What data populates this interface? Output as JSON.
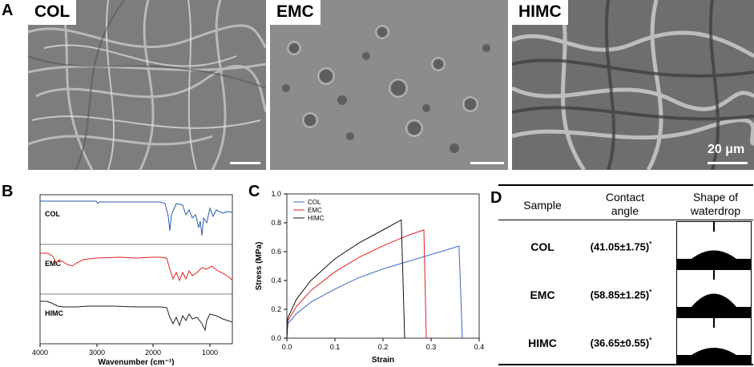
{
  "panels": {
    "a": {
      "letter": "A",
      "images": [
        {
          "label": "COL",
          "description_icon": "sem-fibrous-collagen"
        },
        {
          "label": "EMC",
          "description_icon": "sem-porous-matrix"
        },
        {
          "label": "HIMC",
          "description_icon": "sem-dense-fibers"
        }
      ],
      "scale_text": "20 μm"
    },
    "b": {
      "letter": "B",
      "traces": [
        {
          "name": "COL",
          "color": "#2a5aa8"
        },
        {
          "name": "EMC",
          "color": "#e02020"
        },
        {
          "name": "HIMC",
          "color": "#222222"
        }
      ],
      "x_ticks": [
        "4000",
        "3000",
        "2000",
        "1000"
      ],
      "xlabel": "Wavenumber (cm⁻¹)"
    },
    "c": {
      "letter": "C",
      "xlabel": "Strain",
      "ylabel": "Stress (MPa)"
    },
    "d": {
      "letter": "D",
      "headers": {
        "sample": "Sample",
        "angle": "Contact angle",
        "shape": "Shape of waterdrop"
      },
      "rows": [
        {
          "sample": "COL",
          "angle": "(41.05±1.75)",
          "mark": "*",
          "drop_height": 0.35
        },
        {
          "sample": "EMC",
          "angle": "(58.85±1.25)",
          "mark": "*",
          "drop_height": 0.55
        },
        {
          "sample": "HIMC",
          "angle": "(36.65±0.55)",
          "mark": "*",
          "drop_height": 0.3
        }
      ]
    }
  },
  "chart_data": [
    {
      "type": "line",
      "title": "",
      "xlabel": "Wavenumber (cm⁻¹)",
      "ylabel": "",
      "xlim": [
        4000,
        600
      ],
      "x_ticks": [
        4000,
        3000,
        2000,
        1000
      ],
      "series": [
        {
          "name": "COL",
          "color": "#2a5aa8"
        },
        {
          "name": "EMC",
          "color": "#e02020"
        },
        {
          "name": "HIMC",
          "color": "#222222"
        }
      ]
    },
    {
      "type": "line",
      "title": "",
      "xlabel": "Strain",
      "ylabel": "Stress (MPa)",
      "xlim": [
        0,
        0.4
      ],
      "ylim": [
        0,
        1.0
      ],
      "x_ticks": [
        0.0,
        0.1,
        0.2,
        0.3,
        0.4
      ],
      "y_ticks": [
        0.0,
        0.2,
        0.4,
        0.6,
        0.8,
        1.0
      ],
      "legend_position": "top-left",
      "series": [
        {
          "name": "COL",
          "color": "#3b66c4",
          "x": [
            0,
            0.002,
            0.02,
            0.05,
            0.1,
            0.15,
            0.2,
            0.25,
            0.3,
            0.35,
            0.358,
            0.365
          ],
          "y": [
            0,
            0.1,
            0.17,
            0.25,
            0.34,
            0.42,
            0.48,
            0.53,
            0.58,
            0.63,
            0.64,
            0.0
          ]
        },
        {
          "name": "EMC",
          "color": "#e02020",
          "x": [
            0,
            0.002,
            0.02,
            0.05,
            0.1,
            0.15,
            0.2,
            0.25,
            0.285,
            0.29
          ],
          "y": [
            0,
            0.12,
            0.22,
            0.33,
            0.46,
            0.56,
            0.64,
            0.71,
            0.75,
            0.0
          ]
        },
        {
          "name": "HIMC",
          "color": "#111111",
          "x": [
            0,
            0.002,
            0.02,
            0.05,
            0.1,
            0.15,
            0.2,
            0.238,
            0.245
          ],
          "y": [
            0,
            0.14,
            0.27,
            0.4,
            0.55,
            0.66,
            0.75,
            0.82,
            0.0
          ]
        }
      ]
    }
  ]
}
